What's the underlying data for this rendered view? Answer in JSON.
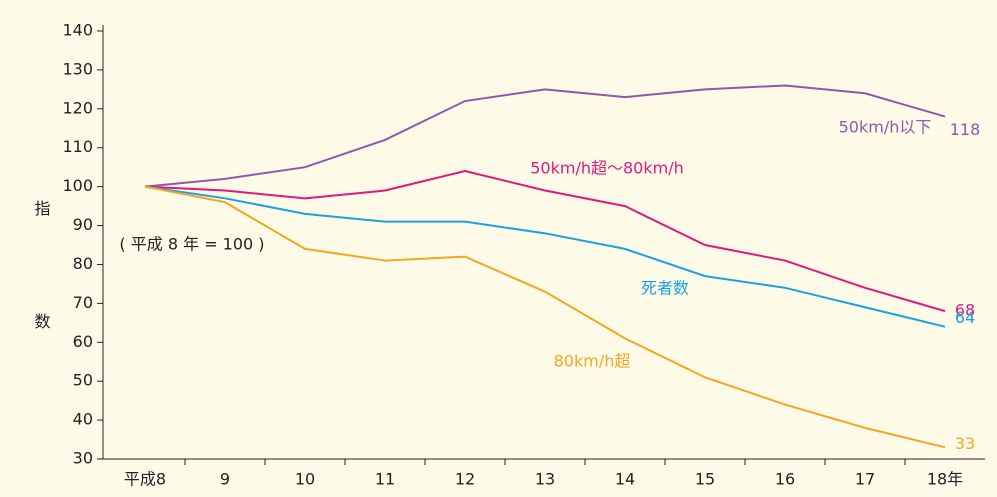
{
  "chart_data": {
    "type": "line",
    "y_label": "指数",
    "annotation": "( 平成 8 年 = 100 )",
    "categories": [
      "平成8",
      "9",
      "10",
      "11",
      "12",
      "13",
      "14",
      "15",
      "16",
      "17",
      "18年"
    ],
    "series": [
      {
        "name": "50km/h以下",
        "color": "#8e5aa8",
        "values": [
          100,
          102,
          105,
          112,
          122,
          125,
          123,
          125,
          126,
          124,
          118
        ]
      },
      {
        "name": "50km/h超～80km/h",
        "color": "#e0197d",
        "values": [
          100,
          99,
          97,
          99,
          104,
          99,
          95,
          85,
          81,
          74,
          68
        ]
      },
      {
        "name": "死者数",
        "color": "#1ba1e2",
        "values": [
          100,
          97,
          93,
          91,
          91,
          88,
          84,
          77,
          74,
          69,
          64
        ]
      },
      {
        "name": "80km/h超",
        "color": "#f5a623",
        "values": [
          100,
          96,
          84,
          81,
          82,
          73,
          61,
          51,
          44,
          38,
          33
        ]
      }
    ],
    "ylim": [
      30,
      140
    ],
    "yticks": [
      30,
      40,
      50,
      60,
      70,
      80,
      90,
      100,
      110,
      120,
      130,
      140
    ]
  }
}
